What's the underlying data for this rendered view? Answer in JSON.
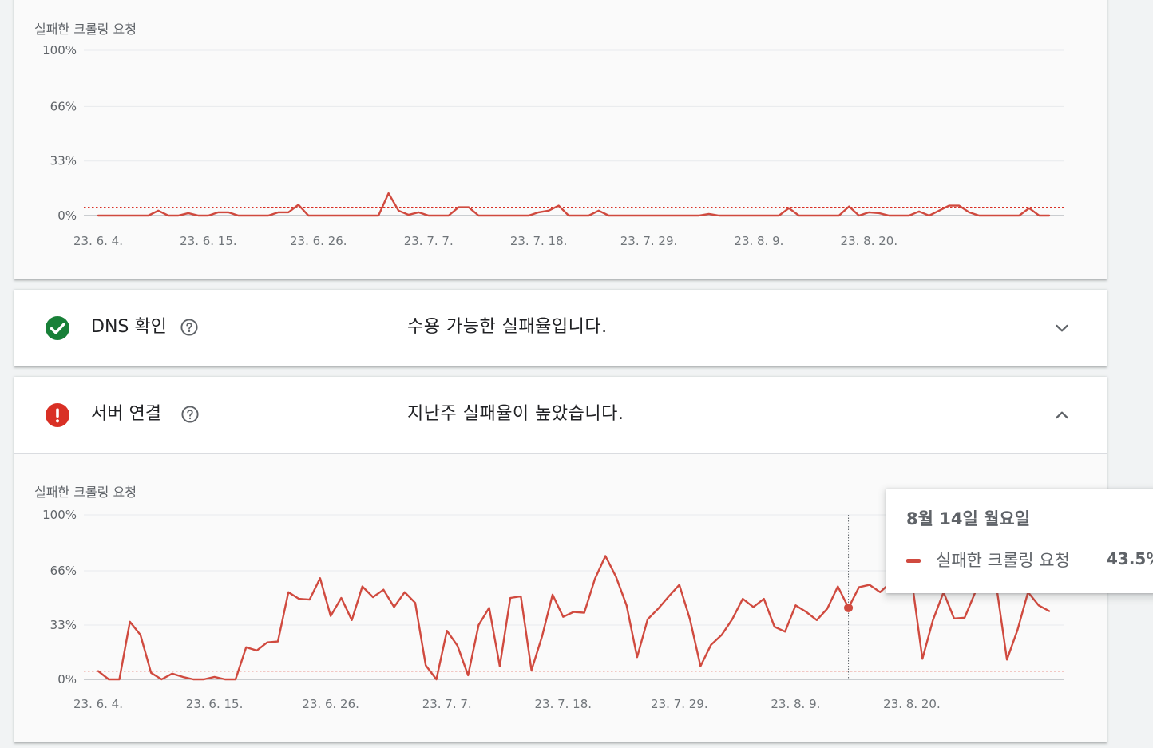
{
  "colors": {
    "line": "#d04a3f",
    "success": "#188038",
    "error": "#d93025",
    "grid": "#e8eaed",
    "threshold": "#d93025"
  },
  "dns_row": {
    "title": "DNS 확인",
    "message": "수용 가능한 실패율입니다.",
    "status_icon": "check-circle-icon",
    "help_icon": "help-circle-icon",
    "toggle_icon": "chevron-down-icon"
  },
  "server_row": {
    "title": "서버 연결",
    "message": "지난주 실패율이 높았습니다.",
    "status_icon": "error-circle-icon",
    "help_icon": "help-circle-icon",
    "toggle_icon": "chevron-up-icon"
  },
  "tooltip": {
    "date": "8월 14일 월요일",
    "series_label": "실패한 크롤링 요청",
    "value": "43.5%"
  },
  "chart_data": [
    {
      "type": "line",
      "title": "실패한 크롤링 요청",
      "y_ticks": [
        "100%",
        "66%",
        "33%",
        "0%"
      ],
      "x_ticks": [
        "23. 6. 4.",
        "23. 6. 15.",
        "23. 6. 26.",
        "23. 7. 7.",
        "23. 7. 18.",
        "23. 7. 29.",
        "23. 8. 9.",
        "23. 8. 20."
      ],
      "x_start": "2023-06-04",
      "x_end": "2023-08-30",
      "ylim": [
        0,
        100
      ],
      "threshold": 5,
      "series": [
        {
          "values": [
            0,
            0,
            0,
            0,
            0,
            0,
            3,
            0,
            0,
            1.5,
            0,
            0,
            2,
            2,
            0,
            0,
            0,
            0,
            2,
            2,
            6.5,
            0,
            0,
            0,
            0,
            0,
            0,
            0,
            0,
            13.5,
            3,
            0.5,
            2,
            0,
            0,
            0,
            5,
            5,
            0,
            0,
            0,
            0,
            0,
            0,
            2,
            3,
            6,
            0,
            0,
            0,
            3,
            0,
            0,
            0,
            0,
            0,
            0,
            0,
            0,
            0,
            0,
            1,
            0,
            0,
            0,
            0,
            0,
            0,
            0,
            4.5,
            0,
            0,
            0,
            0,
            0,
            5.5,
            0,
            2,
            1.5,
            0,
            0,
            0,
            2.5,
            0,
            3,
            6,
            6,
            2,
            0,
            0,
            0,
            0,
            0,
            4.5,
            0,
            0
          ]
        }
      ]
    },
    {
      "type": "line",
      "title": "실패한 크롤링 요청",
      "y_ticks": [
        "100%",
        "66%",
        "33%",
        "0%"
      ],
      "x_ticks": [
        "23. 6. 4.",
        "23. 6. 15.",
        "23. 6. 26.",
        "23. 7. 7.",
        "23. 7. 18.",
        "23. 7. 29.",
        "23. 8. 9.",
        "23. 8. 20."
      ],
      "x_start": "2023-06-04",
      "x_end": "2023-08-30",
      "ylim": [
        0,
        100
      ],
      "threshold": 5,
      "highlight": {
        "date": "2023-08-14",
        "value": 43.5
      },
      "series": [
        {
          "values": [
            5,
            0,
            0,
            35,
            27,
            4,
            0,
            3.5,
            1.5,
            0,
            0,
            1.5,
            0,
            0,
            19.5,
            17.5,
            22.5,
            23,
            53,
            49,
            48.5,
            61.5,
            38.5,
            49.5,
            36,
            56.5,
            50,
            54.5,
            44,
            53,
            46.5,
            8.5,
            0,
            29.5,
            20.5,
            2.5,
            33,
            43.5,
            8,
            49.5,
            50.5,
            5.5,
            26,
            51.5,
            38,
            41,
            40.5,
            61,
            75,
            62.5,
            45,
            13.5,
            36.5,
            43,
            50.5,
            57.5,
            36.5,
            8,
            21,
            27,
            36.5,
            49,
            44,
            49,
            32,
            29,
            45,
            41,
            36,
            43,
            56.5,
            43.5,
            56,
            57.5,
            53,
            59,
            56,
            60,
            12.5,
            36,
            53,
            37,
            37.5,
            53,
            55,
            57,
            12,
            30,
            53,
            45,
            41.5
          ]
        }
      ]
    }
  ]
}
